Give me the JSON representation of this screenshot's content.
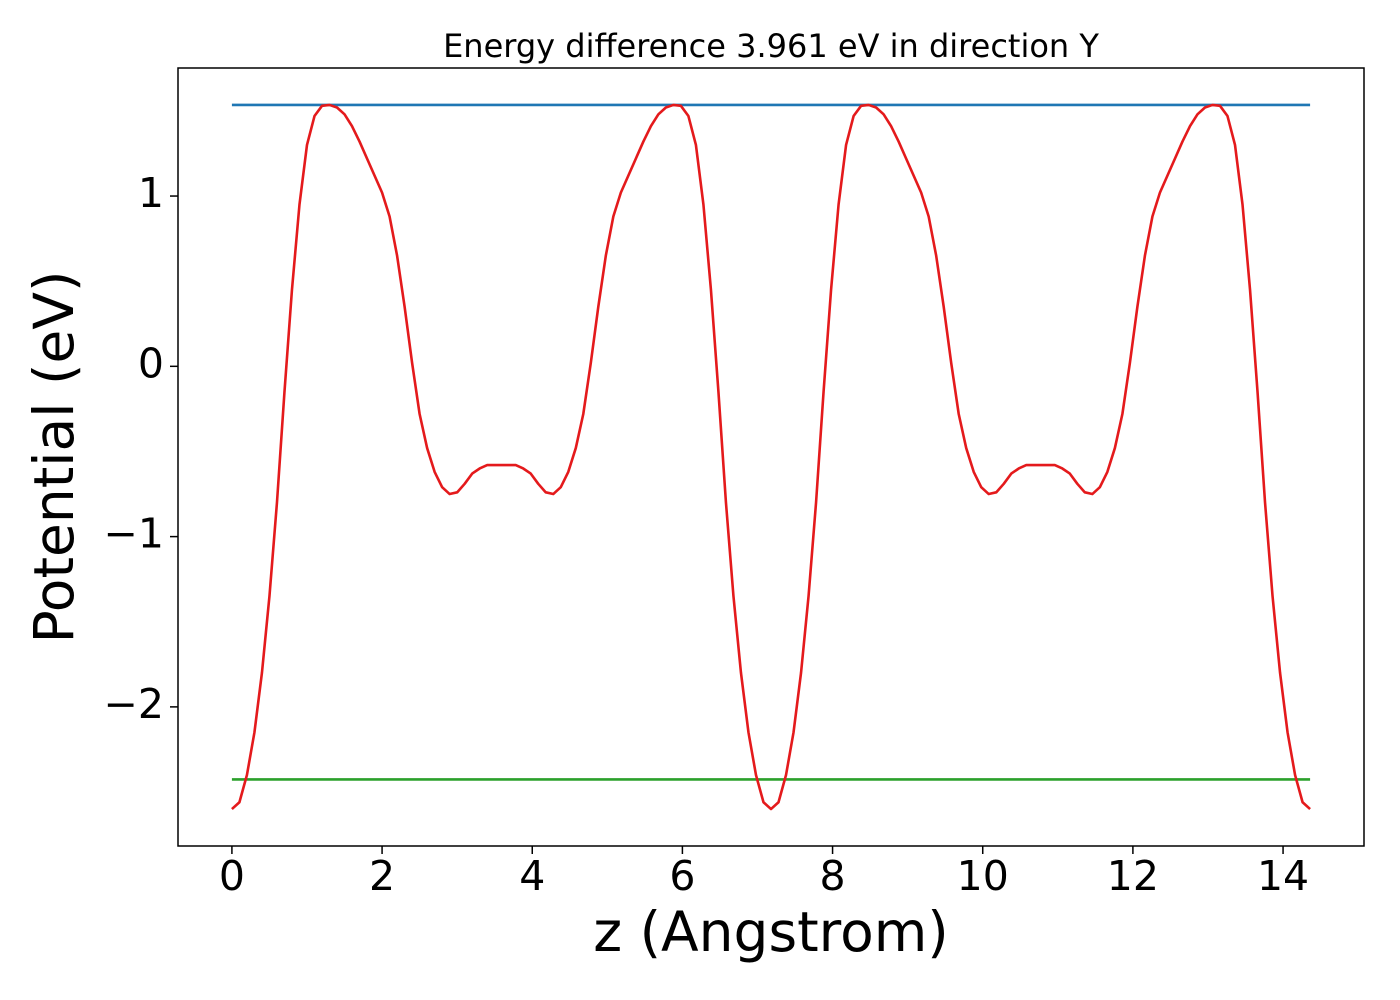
{
  "chart_data": {
    "type": "line",
    "title": "Energy difference 3.961 eV in direction Y",
    "xlabel": "z (Angstrom)",
    "ylabel": "Potential (eV)",
    "xlim": [
      -0.718,
      15.078
    ],
    "ylim": [
      -2.817,
      1.752
    ],
    "xticks": [
      0,
      2,
      4,
      6,
      8,
      10,
      12,
      14
    ],
    "yticks": [
      {
        "value": -2,
        "label": "−2"
      },
      {
        "value": -1,
        "label": "−1"
      },
      0,
      1
    ],
    "grid": false,
    "series": [
      {
        "color": "#e41a1c",
        "x": [
          0,
          0.1,
          0.2,
          0.3,
          0.4,
          0.5,
          0.6,
          0.7,
          0.8,
          0.9,
          1.0,
          1.1,
          1.2,
          1.3,
          1.4,
          1.5,
          1.6,
          1.7,
          1.8,
          1.9,
          2.0,
          2.1,
          2.2,
          2.3,
          2.4,
          2.5,
          2.6,
          2.7,
          2.8,
          2.9,
          3.0,
          3.1,
          3.2,
          3.3,
          3.4,
          3.5,
          3.59,
          3.68,
          3.78,
          3.88,
          3.98,
          4.08,
          4.18,
          4.28,
          4.38,
          4.48,
          4.58,
          4.68,
          4.78,
          4.88,
          4.98,
          5.08,
          5.18,
          5.28,
          5.38,
          5.48,
          5.58,
          5.68,
          5.78,
          5.88,
          5.98,
          6.08,
          6.18,
          6.28,
          6.38,
          6.48,
          6.58,
          6.68,
          6.78,
          6.88,
          6.98,
          7.08,
          7.18,
          7.28,
          7.38,
          7.48,
          7.58,
          7.68,
          7.78,
          7.88,
          7.98,
          8.08,
          8.18,
          8.28,
          8.38,
          8.48,
          8.58,
          8.68,
          8.78,
          8.88,
          8.98,
          9.08,
          9.18,
          9.28,
          9.38,
          9.48,
          9.58,
          9.68,
          9.78,
          9.88,
          9.98,
          10.08,
          10.18,
          10.28,
          10.38,
          10.48,
          10.58,
          10.68,
          10.77,
          10.86,
          10.96,
          11.06,
          11.16,
          11.26,
          11.36,
          11.46,
          11.56,
          11.66,
          11.76,
          11.86,
          11.96,
          12.06,
          12.16,
          12.26,
          12.36,
          12.46,
          12.56,
          12.66,
          12.76,
          12.86,
          12.96,
          13.06,
          13.16,
          13.26,
          13.36,
          13.46,
          13.56,
          13.66,
          13.76,
          13.86,
          13.96,
          14.06,
          14.16,
          14.26,
          14.36
        ],
        "values": [
          -2.6,
          -2.56,
          -2.4,
          -2.15,
          -1.8,
          -1.35,
          -0.8,
          -0.15,
          0.45,
          0.95,
          1.3,
          1.47,
          1.53,
          1.535,
          1.52,
          1.48,
          1.41,
          1.32,
          1.22,
          1.12,
          1.02,
          0.88,
          0.65,
          0.35,
          0.02,
          -0.28,
          -0.48,
          -0.62,
          -0.71,
          -0.75,
          -0.74,
          -0.69,
          -0.63,
          -0.6,
          -0.58,
          -0.58,
          -0.58,
          -0.58,
          -0.58,
          -0.6,
          -0.63,
          -0.69,
          -0.74,
          -0.75,
          -0.71,
          -0.62,
          -0.48,
          -0.28,
          0.02,
          0.35,
          0.65,
          0.88,
          1.02,
          1.12,
          1.22,
          1.32,
          1.41,
          1.48,
          1.52,
          1.535,
          1.53,
          1.47,
          1.3,
          0.95,
          0.45,
          -0.15,
          -0.8,
          -1.35,
          -1.8,
          -2.15,
          -2.4,
          -2.56,
          -2.6,
          -2.56,
          -2.4,
          -2.15,
          -1.8,
          -1.35,
          -0.8,
          -0.15,
          0.45,
          0.95,
          1.3,
          1.47,
          1.53,
          1.535,
          1.52,
          1.48,
          1.41,
          1.32,
          1.22,
          1.12,
          1.02,
          0.88,
          0.65,
          0.35,
          0.02,
          -0.28,
          -0.48,
          -0.62,
          -0.71,
          -0.75,
          -0.74,
          -0.69,
          -0.63,
          -0.6,
          -0.58,
          -0.58,
          -0.58,
          -0.58,
          -0.58,
          -0.6,
          -0.63,
          -0.69,
          -0.74,
          -0.75,
          -0.71,
          -0.62,
          -0.48,
          -0.28,
          0.02,
          0.35,
          0.65,
          0.88,
          1.02,
          1.12,
          1.22,
          1.32,
          1.41,
          1.48,
          1.52,
          1.535,
          1.53,
          1.47,
          1.3,
          0.95,
          0.45,
          -0.15,
          -0.8,
          -1.35,
          -1.8,
          -2.15,
          -2.4,
          -2.56,
          -2.6
        ]
      },
      {
        "color": "#1f77b4",
        "x": [
          0,
          14.36
        ],
        "values": [
          1.535,
          1.535
        ]
      },
      {
        "color": "#2ca02c",
        "x": [
          0,
          14.36
        ],
        "values": [
          -2.426,
          -2.426
        ]
      }
    ]
  }
}
